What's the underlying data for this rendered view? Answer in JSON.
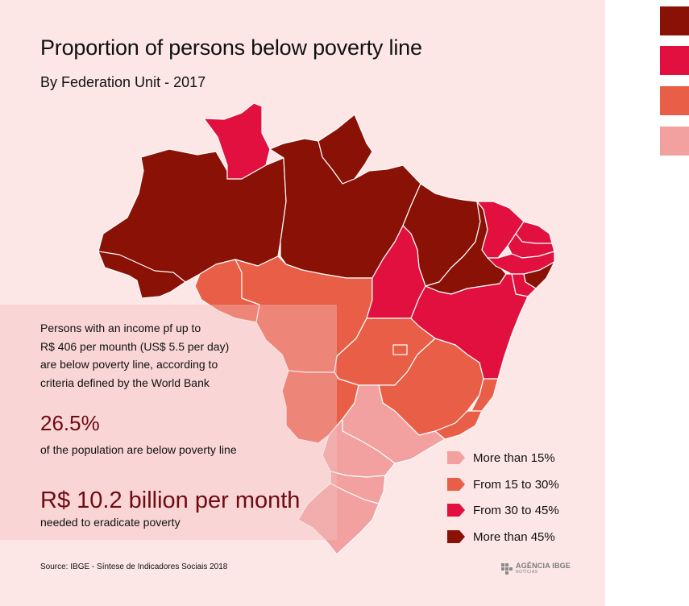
{
  "title": "Proportion of persons below poverty line",
  "subtitle": "By Federation Unit - 2017",
  "description": [
    "Persons with an income pf up to",
    "R$ 406 per mounth (US$ 5.5 per day)",
    "are below poverty line, according to",
    "criteria defined by the World Bank"
  ],
  "stat1": {
    "value": "26.5%",
    "label": "of the population are below poverty line"
  },
  "stat2": {
    "value": "R$ 10.2 billion per month",
    "label": "needed to eradicate poverty"
  },
  "source": "Source: IBGE - Síntese de Indicadores Sociais 2018",
  "logo": {
    "name": "AGÊNCIA IBGE",
    "sub": "NOTÍCIAS"
  },
  "legend": [
    {
      "label": "More than 15%",
      "color": "#f2a0a0"
    },
    {
      "label": "From 15 to 30%",
      "color": "#e85e46"
    },
    {
      "label": "From 30 to 45%",
      "color": "#e2103f"
    },
    {
      "label": "More than 45%",
      "color": "#8a1106"
    }
  ],
  "colors": {
    "background": "#fde6e6",
    "accent_dark": "#6e0a12",
    "border": "#ffffff"
  }
}
